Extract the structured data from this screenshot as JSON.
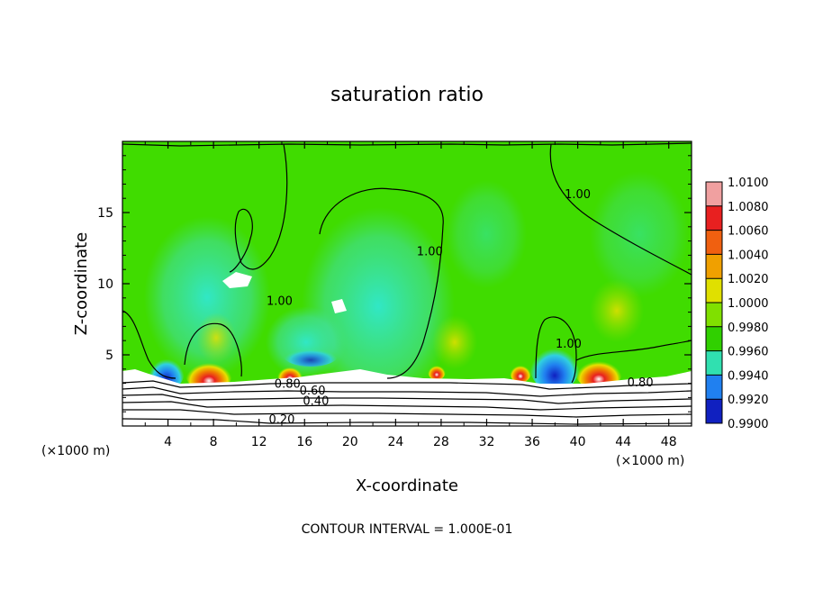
{
  "chart_data": {
    "type": "heatmap",
    "title": "saturation ratio",
    "xlabel": "X-coordinate",
    "ylabel": "Z-coordinate",
    "x_unit_label": "(×1000 m)",
    "x_unit_label_right": "(×1000 m)",
    "xlim": [
      0,
      50
    ],
    "ylim": [
      0,
      20
    ],
    "x_ticks": [
      "4",
      "8",
      "12",
      "16",
      "20",
      "24",
      "28",
      "32",
      "36",
      "40",
      "44",
      "48"
    ],
    "x_tick_values": [
      4,
      8,
      12,
      16,
      20,
      24,
      28,
      32,
      36,
      40,
      44,
      48
    ],
    "y_ticks": [
      "5",
      "10",
      "15"
    ],
    "y_tick_values": [
      5,
      10,
      15
    ],
    "colorbar": {
      "labels": [
        "1.0100",
        "1.0080",
        "1.0060",
        "1.0040",
        "1.0020",
        "1.0000",
        "0.9980",
        "0.9960",
        "0.9940",
        "0.9920",
        "0.9900"
      ],
      "values": [
        1.01,
        1.008,
        1.006,
        1.004,
        1.002,
        1.0,
        0.998,
        0.996,
        0.994,
        0.992,
        0.99
      ],
      "colors": [
        "#f0a0a0",
        "#e82020",
        "#f06010",
        "#f0a000",
        "#e0e000",
        "#80e000",
        "#30d000",
        "#30e0b0",
        "#2080f0",
        "#1020c0",
        "#4010a0"
      ]
    },
    "contour_labels": [
      {
        "text": "1.00",
        "x": 40,
        "y": 16
      },
      {
        "text": "1.00",
        "x": 27,
        "y": 12
      },
      {
        "text": "1.00",
        "x": 13.8,
        "y": 8.5
      },
      {
        "text": "1.00",
        "x": 39.2,
        "y": 5.5
      },
      {
        "text": "0.80",
        "x": 14.5,
        "y": 2.7
      },
      {
        "text": "0.60",
        "x": 16.7,
        "y": 2.2
      },
      {
        "text": "0.40",
        "x": 17,
        "y": 1.5
      },
      {
        "text": "0.20",
        "x": 14,
        "y": 0.2
      },
      {
        "text": "0.80",
        "x": 45.5,
        "y": 2.8
      }
    ],
    "contour_interval_note": "CONTOUR INTERVAL = 1.000E-01"
  }
}
